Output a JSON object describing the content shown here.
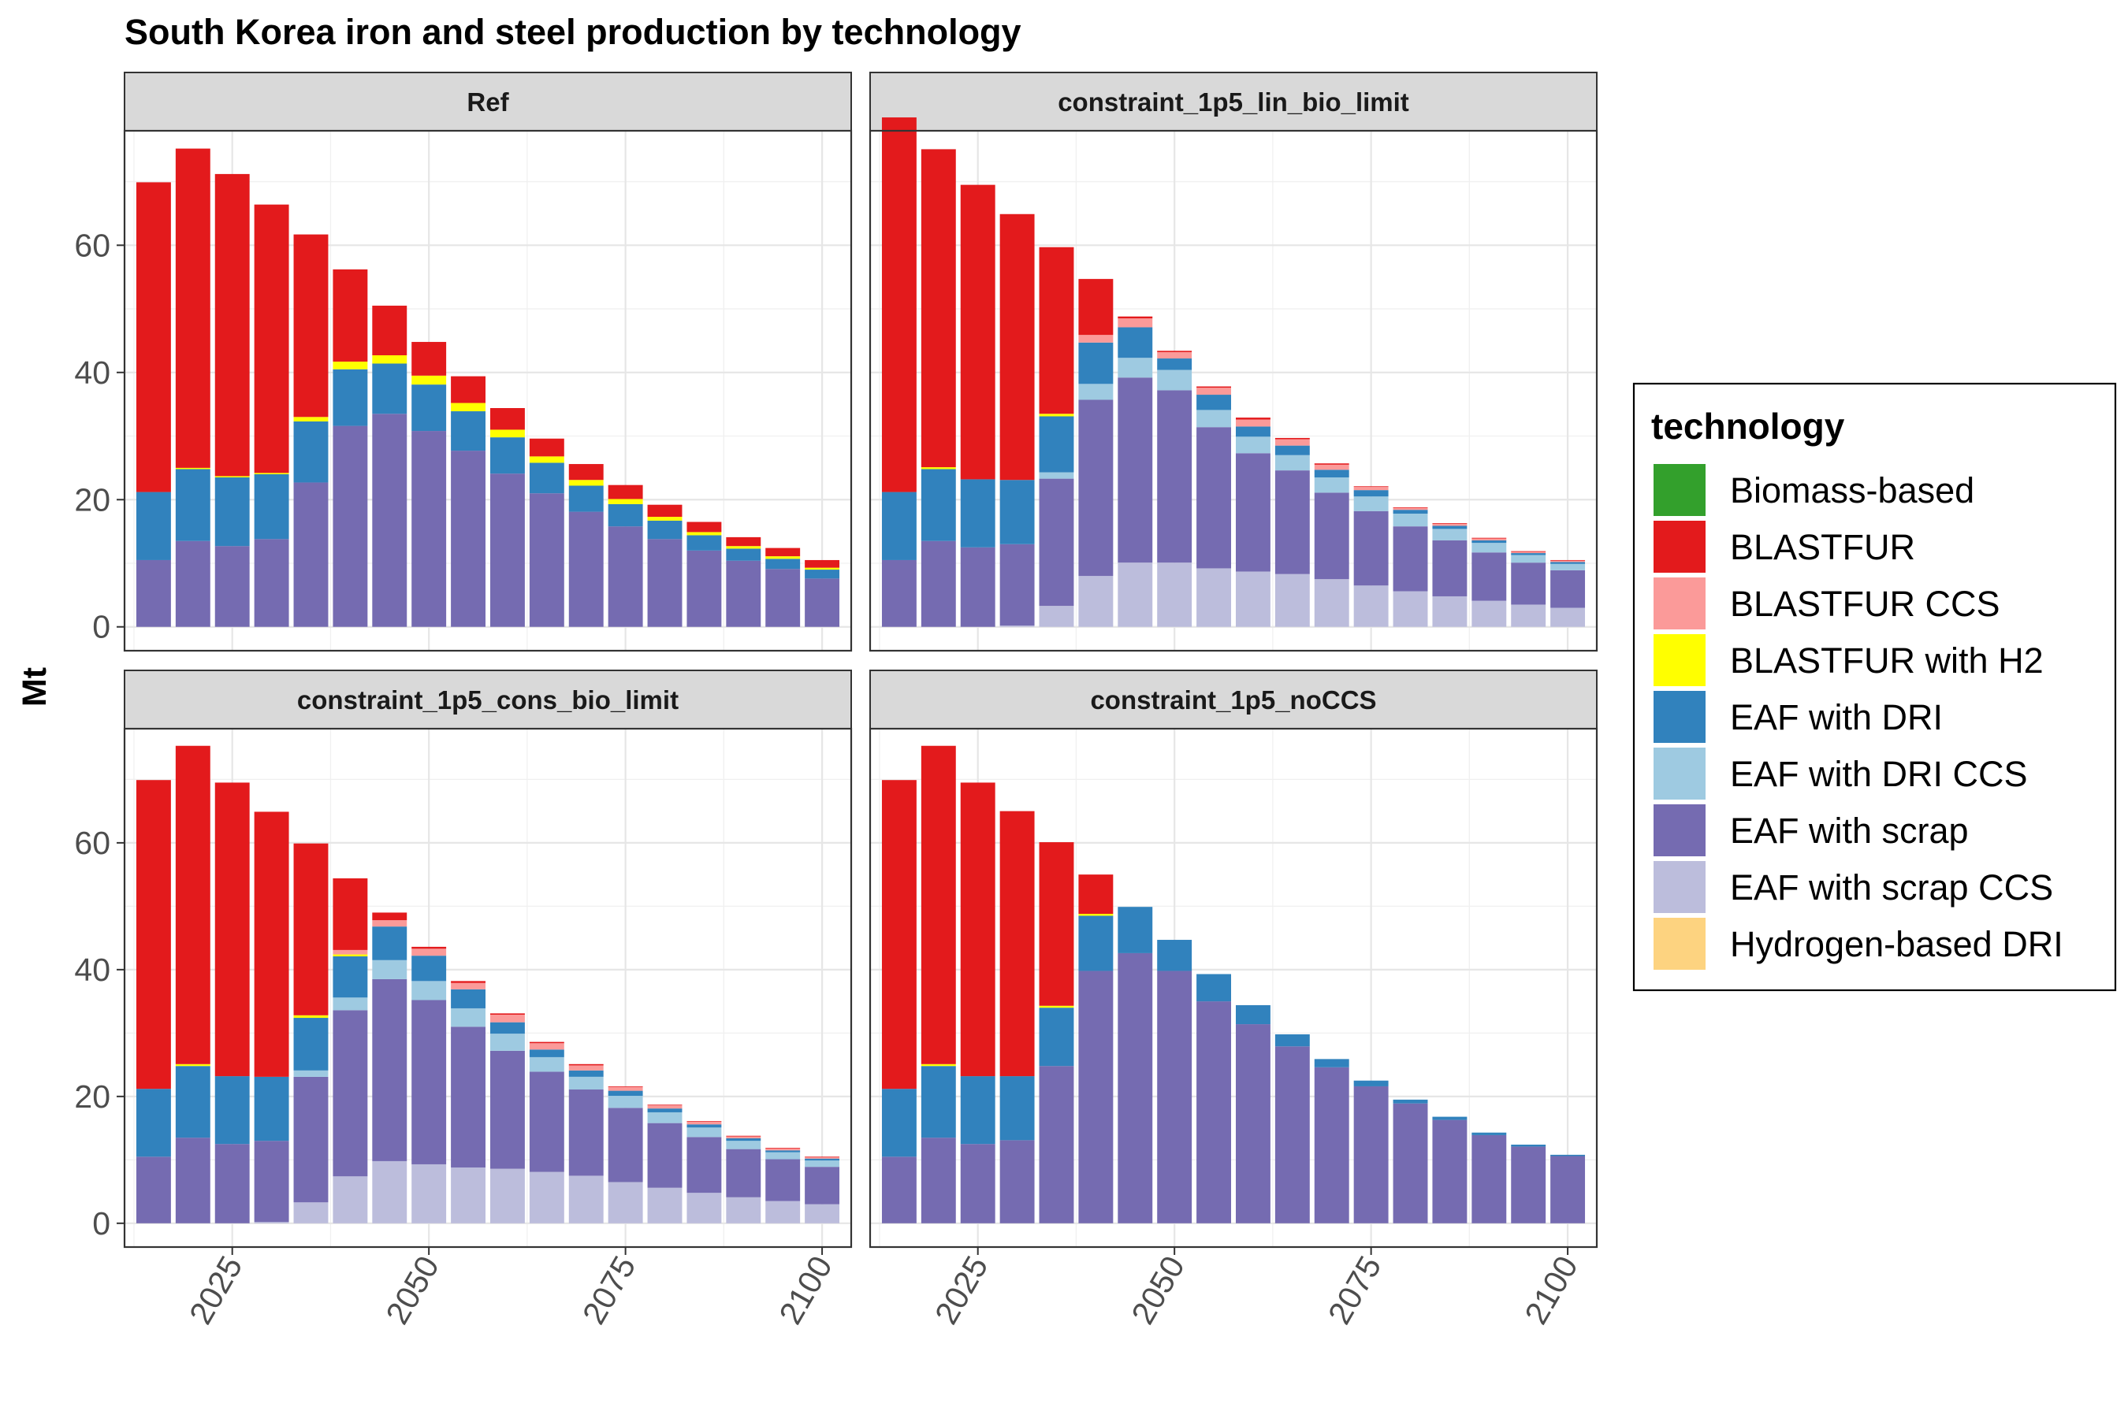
{
  "chart_data": {
    "type": "bar",
    "stacked": true,
    "faceted": true,
    "title": "South Korea iron and steel production by technology",
    "ylabel": "Mt",
    "xlabel": "",
    "x": [
      2015,
      2020,
      2025,
      2030,
      2035,
      2040,
      2045,
      2050,
      2055,
      2060,
      2065,
      2070,
      2075,
      2080,
      2085,
      2090,
      2095,
      2100
    ],
    "xticks": [
      "2025",
      "2050",
      "2075",
      "2100"
    ],
    "yticks": [
      "0",
      "20",
      "40",
      "60"
    ],
    "ylim": [
      0,
      78
    ],
    "grid": true,
    "legend": {
      "title": "technology",
      "placement": "right",
      "items": [
        {
          "name": "Biomass-based",
          "color": "#33a02c"
        },
        {
          "name": "BLASTFUR",
          "color": "#e31a1c"
        },
        {
          "name": "BLASTFUR CCS",
          "color": "#fb9a99"
        },
        {
          "name": "BLASTFUR with H2",
          "color": "#ffff00"
        },
        {
          "name": "EAF with DRI",
          "color": "#3182bd"
        },
        {
          "name": "EAF with DRI CCS",
          "color": "#9ecae1"
        },
        {
          "name": "EAF with scrap",
          "color": "#756bb1"
        },
        {
          "name": "EAF with scrap CCS",
          "color": "#bcbddc"
        },
        {
          "name": "Hydrogen-based DRI",
          "color": "#fdd380"
        }
      ]
    },
    "stack_order": [
      "EAF with scrap CCS",
      "EAF with scrap",
      "EAF with DRI CCS",
      "EAF with DRI",
      "BLASTFUR with H2",
      "BLASTFUR CCS",
      "BLASTFUR"
    ],
    "facets": [
      {
        "name": "Ref",
        "series": {
          "EAF with scrap CCS": [
            0,
            0,
            0,
            0,
            0,
            0,
            0,
            0,
            0,
            0,
            0,
            0,
            0,
            0,
            0,
            0,
            0,
            0
          ],
          "EAF with scrap": [
            10.5,
            13.5,
            12.7,
            13.8,
            22.7,
            31.6,
            33.5,
            30.8,
            27.7,
            24.1,
            21.0,
            18.1,
            15.8,
            13.8,
            12.0,
            10.4,
            9.1,
            7.6
          ],
          "EAF with DRI CCS": [
            0,
            0,
            0,
            0,
            0,
            0,
            0,
            0,
            0,
            0,
            0,
            0,
            0,
            0,
            0,
            0,
            0,
            0
          ],
          "EAF with DRI": [
            10.7,
            11.3,
            10.8,
            10.2,
            9.6,
            8.9,
            7.9,
            7.3,
            6.2,
            5.7,
            4.8,
            4.1,
            3.5,
            2.9,
            2.4,
            1.9,
            1.6,
            1.4
          ],
          "BLASTFUR with H2": [
            0,
            0.2,
            0.2,
            0.2,
            0.7,
            1.2,
            1.3,
            1.4,
            1.3,
            1.2,
            1.0,
            0.9,
            0.8,
            0.6,
            0.5,
            0.4,
            0.4,
            0.3
          ],
          "BLASTFUR CCS": [
            0,
            0,
            0,
            0,
            0,
            0,
            0,
            0,
            0,
            0,
            0,
            0,
            0,
            0,
            0,
            0,
            0,
            0
          ],
          "BLASTFUR": [
            48.7,
            50.2,
            47.5,
            42.2,
            28.7,
            14.5,
            7.8,
            5.3,
            4.2,
            3.4,
            2.8,
            2.5,
            2.2,
            1.9,
            1.6,
            1.4,
            1.3,
            1.2
          ]
        }
      },
      {
        "name": "constraint_1p5_lin_bio_limit",
        "series": {
          "EAF with scrap CCS": [
            0,
            0,
            0,
            0.2,
            3.3,
            8.0,
            10.1,
            10.1,
            9.2,
            8.7,
            8.3,
            7.5,
            6.5,
            5.6,
            4.8,
            4.1,
            3.5,
            3.0
          ],
          "EAF with scrap": [
            10.5,
            13.5,
            12.5,
            12.8,
            20.0,
            27.7,
            29.1,
            27.1,
            22.2,
            18.6,
            16.3,
            13.6,
            11.7,
            10.2,
            8.8,
            7.6,
            6.6,
            5.9
          ],
          "EAF with DRI CCS": [
            0,
            0,
            0,
            0,
            1.0,
            2.5,
            3.1,
            3.2,
            2.7,
            2.6,
            2.4,
            2.4,
            2.3,
            2.0,
            1.8,
            1.5,
            1.2,
            1.0
          ],
          "EAF with DRI": [
            10.7,
            11.3,
            10.7,
            10.1,
            8.8,
            6.5,
            4.8,
            1.8,
            2.4,
            1.6,
            1.5,
            1.2,
            1.0,
            0.6,
            0.5,
            0.4,
            0.3,
            0.3
          ],
          "BLASTFUR with H2": [
            0,
            0.3,
            0,
            0,
            0.4,
            0,
            0,
            0,
            0,
            0,
            0,
            0,
            0,
            0,
            0,
            0,
            0,
            0
          ],
          "BLASTFUR CCS": [
            0,
            0,
            0,
            0,
            0,
            1.2,
            1.4,
            1.0,
            1.1,
            1.1,
            1.0,
            0.8,
            0.5,
            0.3,
            0.3,
            0.3,
            0.2,
            0.2
          ],
          "BLASTFUR": [
            58.9,
            50.0,
            46.3,
            41.8,
            26.2,
            8.8,
            0.3,
            0.2,
            0.2,
            0.3,
            0.2,
            0.2,
            0.1,
            0.1,
            0.1,
            0.1,
            0.1,
            0.1
          ]
        }
      },
      {
        "name": "constraint_1p5_cons_bio_limit",
        "series": {
          "EAF with scrap CCS": [
            0,
            0,
            0,
            0.2,
            3.3,
            7.4,
            9.8,
            9.3,
            8.8,
            8.6,
            8.1,
            7.5,
            6.5,
            5.6,
            4.8,
            4.1,
            3.5,
            3.0
          ],
          "EAF with scrap": [
            10.5,
            13.5,
            12.5,
            12.8,
            19.8,
            26.2,
            28.7,
            25.9,
            22.2,
            18.6,
            15.8,
            13.6,
            11.7,
            10.2,
            8.8,
            7.6,
            6.6,
            5.9
          ],
          "EAF with DRI CCS": [
            0,
            0,
            0,
            0,
            1.0,
            2.0,
            3.0,
            3.0,
            2.9,
            2.7,
            2.3,
            2.0,
            1.9,
            1.7,
            1.5,
            1.3,
            1.1,
            1.0
          ],
          "EAF with DRI": [
            10.7,
            11.3,
            10.7,
            10.1,
            8.3,
            6.5,
            5.3,
            4.0,
            3.0,
            1.8,
            1.2,
            1.0,
            0.8,
            0.6,
            0.5,
            0.4,
            0.3,
            0.3
          ],
          "BLASTFUR with H2": [
            0,
            0.3,
            0,
            0,
            0.4,
            0.3,
            0,
            0,
            0,
            0,
            0,
            0,
            0,
            0,
            0,
            0,
            0,
            0
          ],
          "BLASTFUR CCS": [
            0,
            0,
            0,
            0,
            0,
            0.7,
            1.0,
            1.1,
            1.0,
            1.2,
            1.0,
            0.8,
            0.6,
            0.5,
            0.4,
            0.3,
            0.3,
            0.2
          ],
          "BLASTFUR": [
            48.7,
            50.2,
            46.3,
            41.8,
            27.1,
            11.3,
            1.2,
            0.3,
            0.3,
            0.2,
            0.2,
            0.2,
            0.1,
            0.1,
            0.1,
            0.1,
            0.1,
            0.1
          ]
        }
      },
      {
        "name": "constraint_1p5_noCCS",
        "series": {
          "EAF with scrap CCS": [
            0,
            0,
            0,
            0,
            0,
            0,
            0,
            0,
            0,
            0,
            0,
            0,
            0,
            0,
            0,
            0,
            0,
            0
          ],
          "EAF with scrap": [
            10.5,
            13.5,
            12.5,
            13.1,
            24.8,
            39.8,
            42.6,
            39.8,
            35.0,
            31.4,
            27.9,
            24.6,
            21.6,
            18.9,
            16.3,
            13.9,
            12.1,
            10.6
          ],
          "EAF with DRI CCS": [
            0,
            0,
            0,
            0,
            0,
            0,
            0,
            0,
            0,
            0,
            0,
            0,
            0,
            0,
            0,
            0,
            0,
            0
          ],
          "EAF with DRI": [
            10.7,
            11.3,
            10.7,
            10.1,
            9.2,
            8.7,
            7.3,
            4.9,
            4.3,
            3.0,
            1.9,
            1.3,
            0.9,
            0.6,
            0.5,
            0.4,
            0.3,
            0.2
          ],
          "BLASTFUR with H2": [
            0,
            0.3,
            0,
            0,
            0.3,
            0.3,
            0,
            0,
            0,
            0,
            0,
            0,
            0,
            0,
            0,
            0,
            0,
            0
          ],
          "BLASTFUR CCS": [
            0,
            0,
            0,
            0,
            0,
            0,
            0,
            0,
            0,
            0,
            0,
            0,
            0,
            0,
            0,
            0,
            0,
            0
          ],
          "BLASTFUR": [
            48.7,
            50.2,
            46.3,
            41.8,
            25.8,
            6.2,
            0,
            0,
            0,
            0,
            0,
            0,
            0,
            0,
            0,
            0,
            0,
            0
          ]
        }
      }
    ]
  }
}
